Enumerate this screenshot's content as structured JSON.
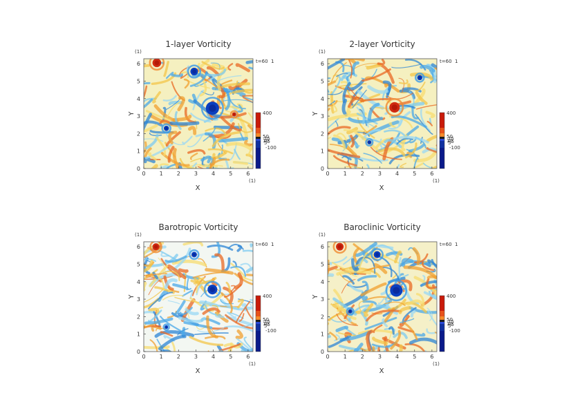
{
  "chart_data": [
    {
      "type": "heatmap",
      "title": "1-layer Vorticity",
      "xlabel": "X",
      "ylabel": "Y",
      "x_unit": "(1)",
      "y_unit": "(1)",
      "xlim": [
        0,
        6.283
      ],
      "ylim": [
        0,
        6.283
      ],
      "x_ticks": [
        "0",
        "1",
        "2",
        "3",
        "4",
        "5",
        "6"
      ],
      "y_ticks": [
        "0",
        "1",
        "2",
        "3",
        "4",
        "5",
        "6"
      ],
      "time_label": "t=60",
      "time_unit": "1",
      "colorbar_labels": [
        "400",
        "50",
        "15",
        "10",
        "5",
        "-5",
        "-100"
      ],
      "colorbar_colors": [
        "#c91a0a",
        "#e8521a",
        "#f58a2a",
        "#1a1a1a",
        "#2a4ad8",
        "#1030a0",
        "#0a1a8a"
      ],
      "base_color": "#f5f0c0",
      "vortices": [
        {
          "x": 3.95,
          "y": 3.45,
          "r": 0.38,
          "sign": -1
        },
        {
          "x": 2.9,
          "y": 5.55,
          "r": 0.22,
          "sign": -1
        },
        {
          "x": 0.75,
          "y": 6.05,
          "r": 0.25,
          "sign": 1
        },
        {
          "x": 1.3,
          "y": 2.3,
          "r": 0.15,
          "sign": -1
        },
        {
          "x": 5.2,
          "y": 3.1,
          "r": 0.12,
          "sign": 1
        }
      ]
    },
    {
      "type": "heatmap",
      "title": "2-layer Vorticity",
      "xlabel": "X",
      "ylabel": "Y",
      "x_unit": "(1)",
      "y_unit": "(1)",
      "xlim": [
        0,
        6.283
      ],
      "ylim": [
        0,
        6.283
      ],
      "x_ticks": [
        "0",
        "1",
        "2",
        "3",
        "4",
        "5",
        "6"
      ],
      "y_ticks": [
        "0",
        "1",
        "2",
        "3",
        "4",
        "5",
        "6"
      ],
      "time_label": "t=60",
      "time_unit": "1",
      "colorbar_labels": [
        "400",
        "50",
        "15",
        "10",
        "5",
        "-5",
        "-100"
      ],
      "colorbar_colors": [
        "#c91a0a",
        "#e8521a",
        "#f58a2a",
        "#1a1a1a",
        "#2a4ad8",
        "#1030a0",
        "#0a1a8a"
      ],
      "base_color": "#f5f0c0",
      "vortices": [
        {
          "x": 3.85,
          "y": 3.5,
          "r": 0.3,
          "sign": 1
        },
        {
          "x": 2.4,
          "y": 1.5,
          "r": 0.12,
          "sign": -1
        },
        {
          "x": 5.3,
          "y": 5.2,
          "r": 0.15,
          "sign": -1
        }
      ]
    },
    {
      "type": "heatmap",
      "title": "Barotropic Vorticity",
      "xlabel": "X",
      "ylabel": "Y",
      "x_unit": "(1)",
      "y_unit": "(1)",
      "xlim": [
        0,
        6.283
      ],
      "ylim": [
        0,
        6.283
      ],
      "x_ticks": [
        "0",
        "1",
        "2",
        "3",
        "4",
        "5",
        "6"
      ],
      "y_ticks": [
        "0",
        "1",
        "2",
        "3",
        "4",
        "5",
        "6"
      ],
      "time_label": "t=60",
      "time_unit": "1",
      "colorbar_labels": [
        "400",
        "50",
        "15",
        "10",
        "5",
        "-5",
        "-100"
      ],
      "colorbar_colors": [
        "#c91a0a",
        "#e8521a",
        "#f58a2a",
        "#1a1a1a",
        "#2a4ad8",
        "#1030a0",
        "#0a1a8a"
      ],
      "base_color": "#f3f7f2",
      "vortices": [
        {
          "x": 3.95,
          "y": 3.55,
          "r": 0.28,
          "sign": -1
        },
        {
          "x": 2.9,
          "y": 5.55,
          "r": 0.16,
          "sign": -1
        },
        {
          "x": 0.7,
          "y": 6.0,
          "r": 0.2,
          "sign": 1
        },
        {
          "x": 1.3,
          "y": 1.4,
          "r": 0.1,
          "sign": -1
        }
      ]
    },
    {
      "type": "heatmap",
      "title": "Baroclinic Vorticity",
      "xlabel": "X",
      "ylabel": "Y",
      "x_unit": "(1)",
      "y_unit": "(1)",
      "xlim": [
        0,
        6.283
      ],
      "ylim": [
        0,
        6.283
      ],
      "x_ticks": [
        "0",
        "1",
        "2",
        "3",
        "4",
        "5",
        "6"
      ],
      "y_ticks": [
        "0",
        "1",
        "2",
        "3",
        "4",
        "5",
        "6"
      ],
      "time_label": "t=60",
      "time_unit": "1",
      "colorbar_labels": [
        "400",
        "50",
        "15",
        "10",
        "5",
        "-5",
        "-100"
      ],
      "colorbar_colors": [
        "#c91a0a",
        "#e8521a",
        "#f58a2a",
        "#1a1a1a",
        "#2a4ad8",
        "#1030a0",
        "#0a1a8a"
      ],
      "base_color": "#f5f0c8",
      "vortices": [
        {
          "x": 3.95,
          "y": 3.5,
          "r": 0.36,
          "sign": -1
        },
        {
          "x": 2.85,
          "y": 5.55,
          "r": 0.2,
          "sign": -1
        },
        {
          "x": 0.7,
          "y": 6.0,
          "r": 0.22,
          "sign": 1
        },
        {
          "x": 1.3,
          "y": 2.3,
          "r": 0.12,
          "sign": -1
        }
      ]
    }
  ]
}
